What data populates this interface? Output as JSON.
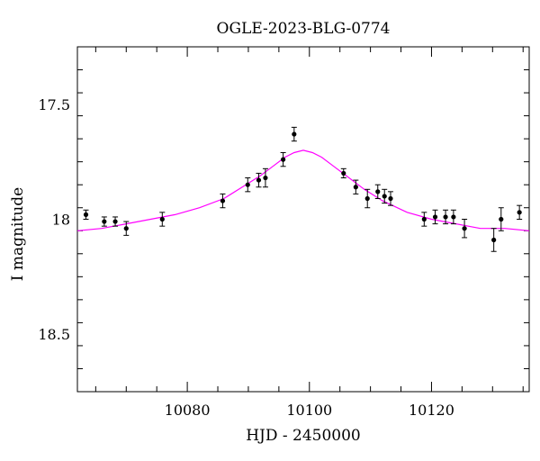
{
  "chart_data": {
    "type": "scatter",
    "title": "OGLE-2023-BLG-0774",
    "xlabel": "HJD - 2450000",
    "ylabel": "I magnitude",
    "xlim": [
      10062,
      10136
    ],
    "ylim": [
      18.75,
      17.25
    ],
    "y_inverted": true,
    "x_ticks": [
      10080,
      10100,
      10120
    ],
    "x_tick_labels": [
      "10080",
      "10100",
      "10120"
    ],
    "y_ticks": [
      17.5,
      18,
      18.5
    ],
    "y_tick_labels": [
      "17.5",
      "18",
      "18.5"
    ],
    "grid": false,
    "legend": "none",
    "series": [
      {
        "kind": "points_with_errorbars",
        "color": "#000000",
        "x": [
          10063.4,
          10066.4,
          10068.2,
          10070.0,
          10075.9,
          10085.8,
          10089.9,
          10091.7,
          10092.8,
          10095.7,
          10097.5,
          10105.6,
          10107.6,
          10109.5,
          10111.2,
          10112.3,
          10113.3,
          10118.8,
          10120.6,
          10122.3,
          10123.6,
          10125.4,
          10130.2,
          10131.4,
          10134.4
        ],
        "y": [
          17.98,
          18.01,
          18.01,
          18.04,
          18.0,
          17.92,
          17.85,
          17.83,
          17.82,
          17.74,
          17.63,
          17.8,
          17.86,
          17.91,
          17.88,
          17.9,
          17.91,
          18.0,
          17.99,
          17.99,
          17.99,
          18.04,
          18.09,
          18.0,
          17.97
        ],
        "err": [
          0.02,
          0.02,
          0.02,
          0.03,
          0.03,
          0.03,
          0.03,
          0.03,
          0.04,
          0.03,
          0.03,
          0.02,
          0.03,
          0.04,
          0.03,
          0.03,
          0.03,
          0.03,
          0.03,
          0.03,
          0.03,
          0.04,
          0.05,
          0.05,
          0.03
        ]
      },
      {
        "kind": "model_curve",
        "color": "#ff00ff",
        "x": [
          10062,
          10066,
          10070,
          10074,
          10078,
          10082,
          10086,
          10089,
          10092,
          10094,
          10096,
          10097.5,
          10099,
          10100.5,
          10102,
          10104,
          10106,
          10109,
          10112,
          10116,
          10120,
          10124,
          10128,
          10132,
          10136
        ],
        "y": [
          18.05,
          18.04,
          18.02,
          18.0,
          17.98,
          17.95,
          17.91,
          17.86,
          17.81,
          17.77,
          17.73,
          17.71,
          17.7,
          17.71,
          17.73,
          17.77,
          17.81,
          17.87,
          17.92,
          17.97,
          18.0,
          18.02,
          18.04,
          18.04,
          18.05
        ]
      }
    ]
  }
}
